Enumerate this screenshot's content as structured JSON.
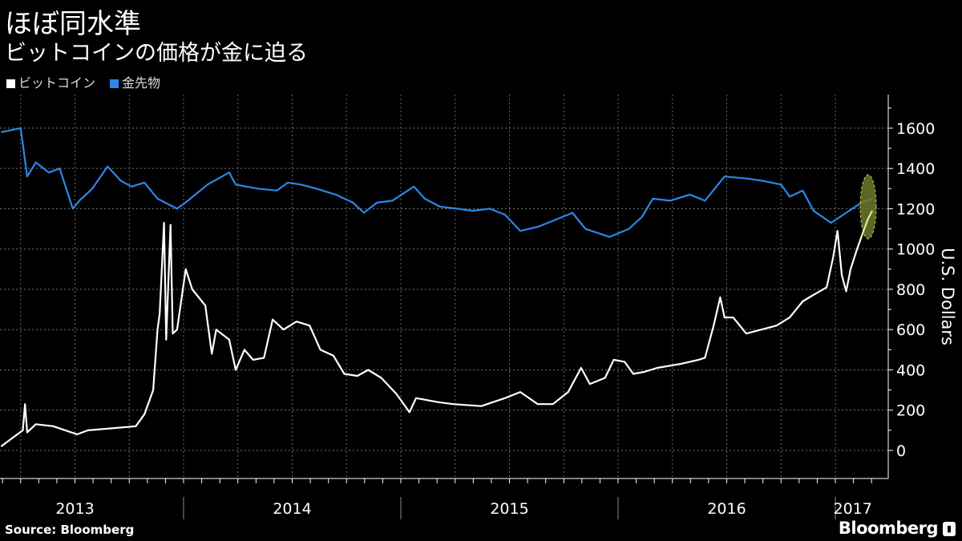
{
  "chart_data": {
    "type": "line",
    "title": "ほぼ同水準",
    "subtitle": "ビットコインの価格が金に迫る",
    "ylabel": "U.S. Dollars",
    "ylim": [
      -100,
      1760
    ],
    "yticks": [
      "0",
      "200",
      "400",
      "600",
      "800",
      "1000",
      "1200",
      "1400",
      "1600"
    ],
    "ytick_values": [
      0,
      200,
      400,
      600,
      800,
      1000,
      1200,
      1400,
      1600
    ],
    "xlabels": [
      {
        "label": "2013",
        "t": 2013.5
      },
      {
        "label": "2014",
        "t": 2014.5
      },
      {
        "label": "2015",
        "t": 2015.5
      },
      {
        "label": "2016",
        "t": 2016.5
      },
      {
        "label": "2017",
        "t": 2017.08
      }
    ],
    "xlim": [
      2013.155,
      2017.23
    ],
    "legend_position": "top-left",
    "grid": true,
    "series": [
      {
        "name": "ビットコイン",
        "color": "#ffffff",
        "points": [
          [
            2013.16,
            20
          ],
          [
            2013.21,
            60
          ],
          [
            2013.26,
            100
          ],
          [
            2013.27,
            230
          ],
          [
            2013.28,
            90
          ],
          [
            2013.32,
            130
          ],
          [
            2013.4,
            120
          ],
          [
            2013.51,
            80
          ],
          [
            2013.56,
            100
          ],
          [
            2013.67,
            110
          ],
          [
            2013.78,
            120
          ],
          [
            2013.82,
            180
          ],
          [
            2013.86,
            300
          ],
          [
            2013.88,
            600
          ],
          [
            2013.89,
            680
          ],
          [
            2013.91,
            1130
          ],
          [
            2013.92,
            550
          ],
          [
            2013.94,
            1120
          ],
          [
            2013.95,
            580
          ],
          [
            2013.97,
            600
          ],
          [
            2014.01,
            900
          ],
          [
            2014.04,
            800
          ],
          [
            2014.1,
            720
          ],
          [
            2014.13,
            480
          ],
          [
            2014.15,
            600
          ],
          [
            2014.21,
            550
          ],
          [
            2014.24,
            400
          ],
          [
            2014.28,
            500
          ],
          [
            2014.32,
            450
          ],
          [
            2014.37,
            460
          ],
          [
            2014.41,
            650
          ],
          [
            2014.46,
            600
          ],
          [
            2014.52,
            640
          ],
          [
            2014.58,
            620
          ],
          [
            2014.63,
            500
          ],
          [
            2014.69,
            470
          ],
          [
            2014.74,
            380
          ],
          [
            2014.8,
            370
          ],
          [
            2014.85,
            400
          ],
          [
            2014.91,
            360
          ],
          [
            2014.98,
            280
          ],
          [
            2015.04,
            190
          ],
          [
            2015.07,
            260
          ],
          [
            2015.17,
            240
          ],
          [
            2015.24,
            230
          ],
          [
            2015.37,
            220
          ],
          [
            2015.48,
            260
          ],
          [
            2015.55,
            290
          ],
          [
            2015.63,
            230
          ],
          [
            2015.7,
            230
          ],
          [
            2015.77,
            290
          ],
          [
            2015.83,
            410
          ],
          [
            2015.87,
            330
          ],
          [
            2015.94,
            360
          ],
          [
            2015.98,
            450
          ],
          [
            2016.03,
            440
          ],
          [
            2016.07,
            380
          ],
          [
            2016.12,
            390
          ],
          [
            2016.18,
            410
          ],
          [
            2016.29,
            430
          ],
          [
            2016.37,
            450
          ],
          [
            2016.4,
            460
          ],
          [
            2016.44,
            620
          ],
          [
            2016.47,
            760
          ],
          [
            2016.49,
            660
          ],
          [
            2016.53,
            660
          ],
          [
            2016.59,
            580
          ],
          [
            2016.66,
            600
          ],
          [
            2016.73,
            620
          ],
          [
            2016.79,
            660
          ],
          [
            2016.85,
            740
          ],
          [
            2016.88,
            760
          ],
          [
            2016.96,
            810
          ],
          [
            2016.99,
            960
          ],
          [
            2017.01,
            1090
          ],
          [
            2017.03,
            870
          ],
          [
            2017.05,
            790
          ],
          [
            2017.07,
            900
          ],
          [
            2017.1,
            1000
          ],
          [
            2017.12,
            1060
          ],
          [
            2017.15,
            1150
          ],
          [
            2017.17,
            1190
          ]
        ]
      },
      {
        "name": "金先物",
        "color": "#2b88e6",
        "points": [
          [
            2013.16,
            1580
          ],
          [
            2013.25,
            1600
          ],
          [
            2013.28,
            1360
          ],
          [
            2013.32,
            1430
          ],
          [
            2013.38,
            1380
          ],
          [
            2013.43,
            1400
          ],
          [
            2013.49,
            1200
          ],
          [
            2013.52,
            1240
          ],
          [
            2013.58,
            1300
          ],
          [
            2013.65,
            1410
          ],
          [
            2013.71,
            1340
          ],
          [
            2013.76,
            1310
          ],
          [
            2013.82,
            1330
          ],
          [
            2013.88,
            1250
          ],
          [
            2013.97,
            1200
          ],
          [
            2014.02,
            1240
          ],
          [
            2014.11,
            1320
          ],
          [
            2014.21,
            1380
          ],
          [
            2014.24,
            1320
          ],
          [
            2014.34,
            1300
          ],
          [
            2014.43,
            1290
          ],
          [
            2014.48,
            1330
          ],
          [
            2014.54,
            1320
          ],
          [
            2014.61,
            1300
          ],
          [
            2014.7,
            1270
          ],
          [
            2014.78,
            1230
          ],
          [
            2014.83,
            1180
          ],
          [
            2014.89,
            1230
          ],
          [
            2014.96,
            1240
          ],
          [
            2015.06,
            1310
          ],
          [
            2015.11,
            1250
          ],
          [
            2015.18,
            1210
          ],
          [
            2015.26,
            1200
          ],
          [
            2015.33,
            1190
          ],
          [
            2015.41,
            1200
          ],
          [
            2015.48,
            1170
          ],
          [
            2015.55,
            1090
          ],
          [
            2015.63,
            1110
          ],
          [
            2015.7,
            1140
          ],
          [
            2015.79,
            1180
          ],
          [
            2015.85,
            1100
          ],
          [
            2015.96,
            1060
          ],
          [
            2016.05,
            1100
          ],
          [
            2016.11,
            1160
          ],
          [
            2016.16,
            1250
          ],
          [
            2016.24,
            1240
          ],
          [
            2016.33,
            1270
          ],
          [
            2016.4,
            1240
          ],
          [
            2016.49,
            1360
          ],
          [
            2016.59,
            1350
          ],
          [
            2016.66,
            1340
          ],
          [
            2016.75,
            1320
          ],
          [
            2016.79,
            1260
          ],
          [
            2016.85,
            1290
          ],
          [
            2016.9,
            1190
          ],
          [
            2016.98,
            1130
          ],
          [
            2017.05,
            1180
          ],
          [
            2017.12,
            1230
          ],
          [
            2017.17,
            1250
          ]
        ]
      }
    ],
    "highlight_color": "#6b7a2a"
  },
  "footer": {
    "source": "Source: Bloomberg",
    "brand": "Bloomberg"
  }
}
